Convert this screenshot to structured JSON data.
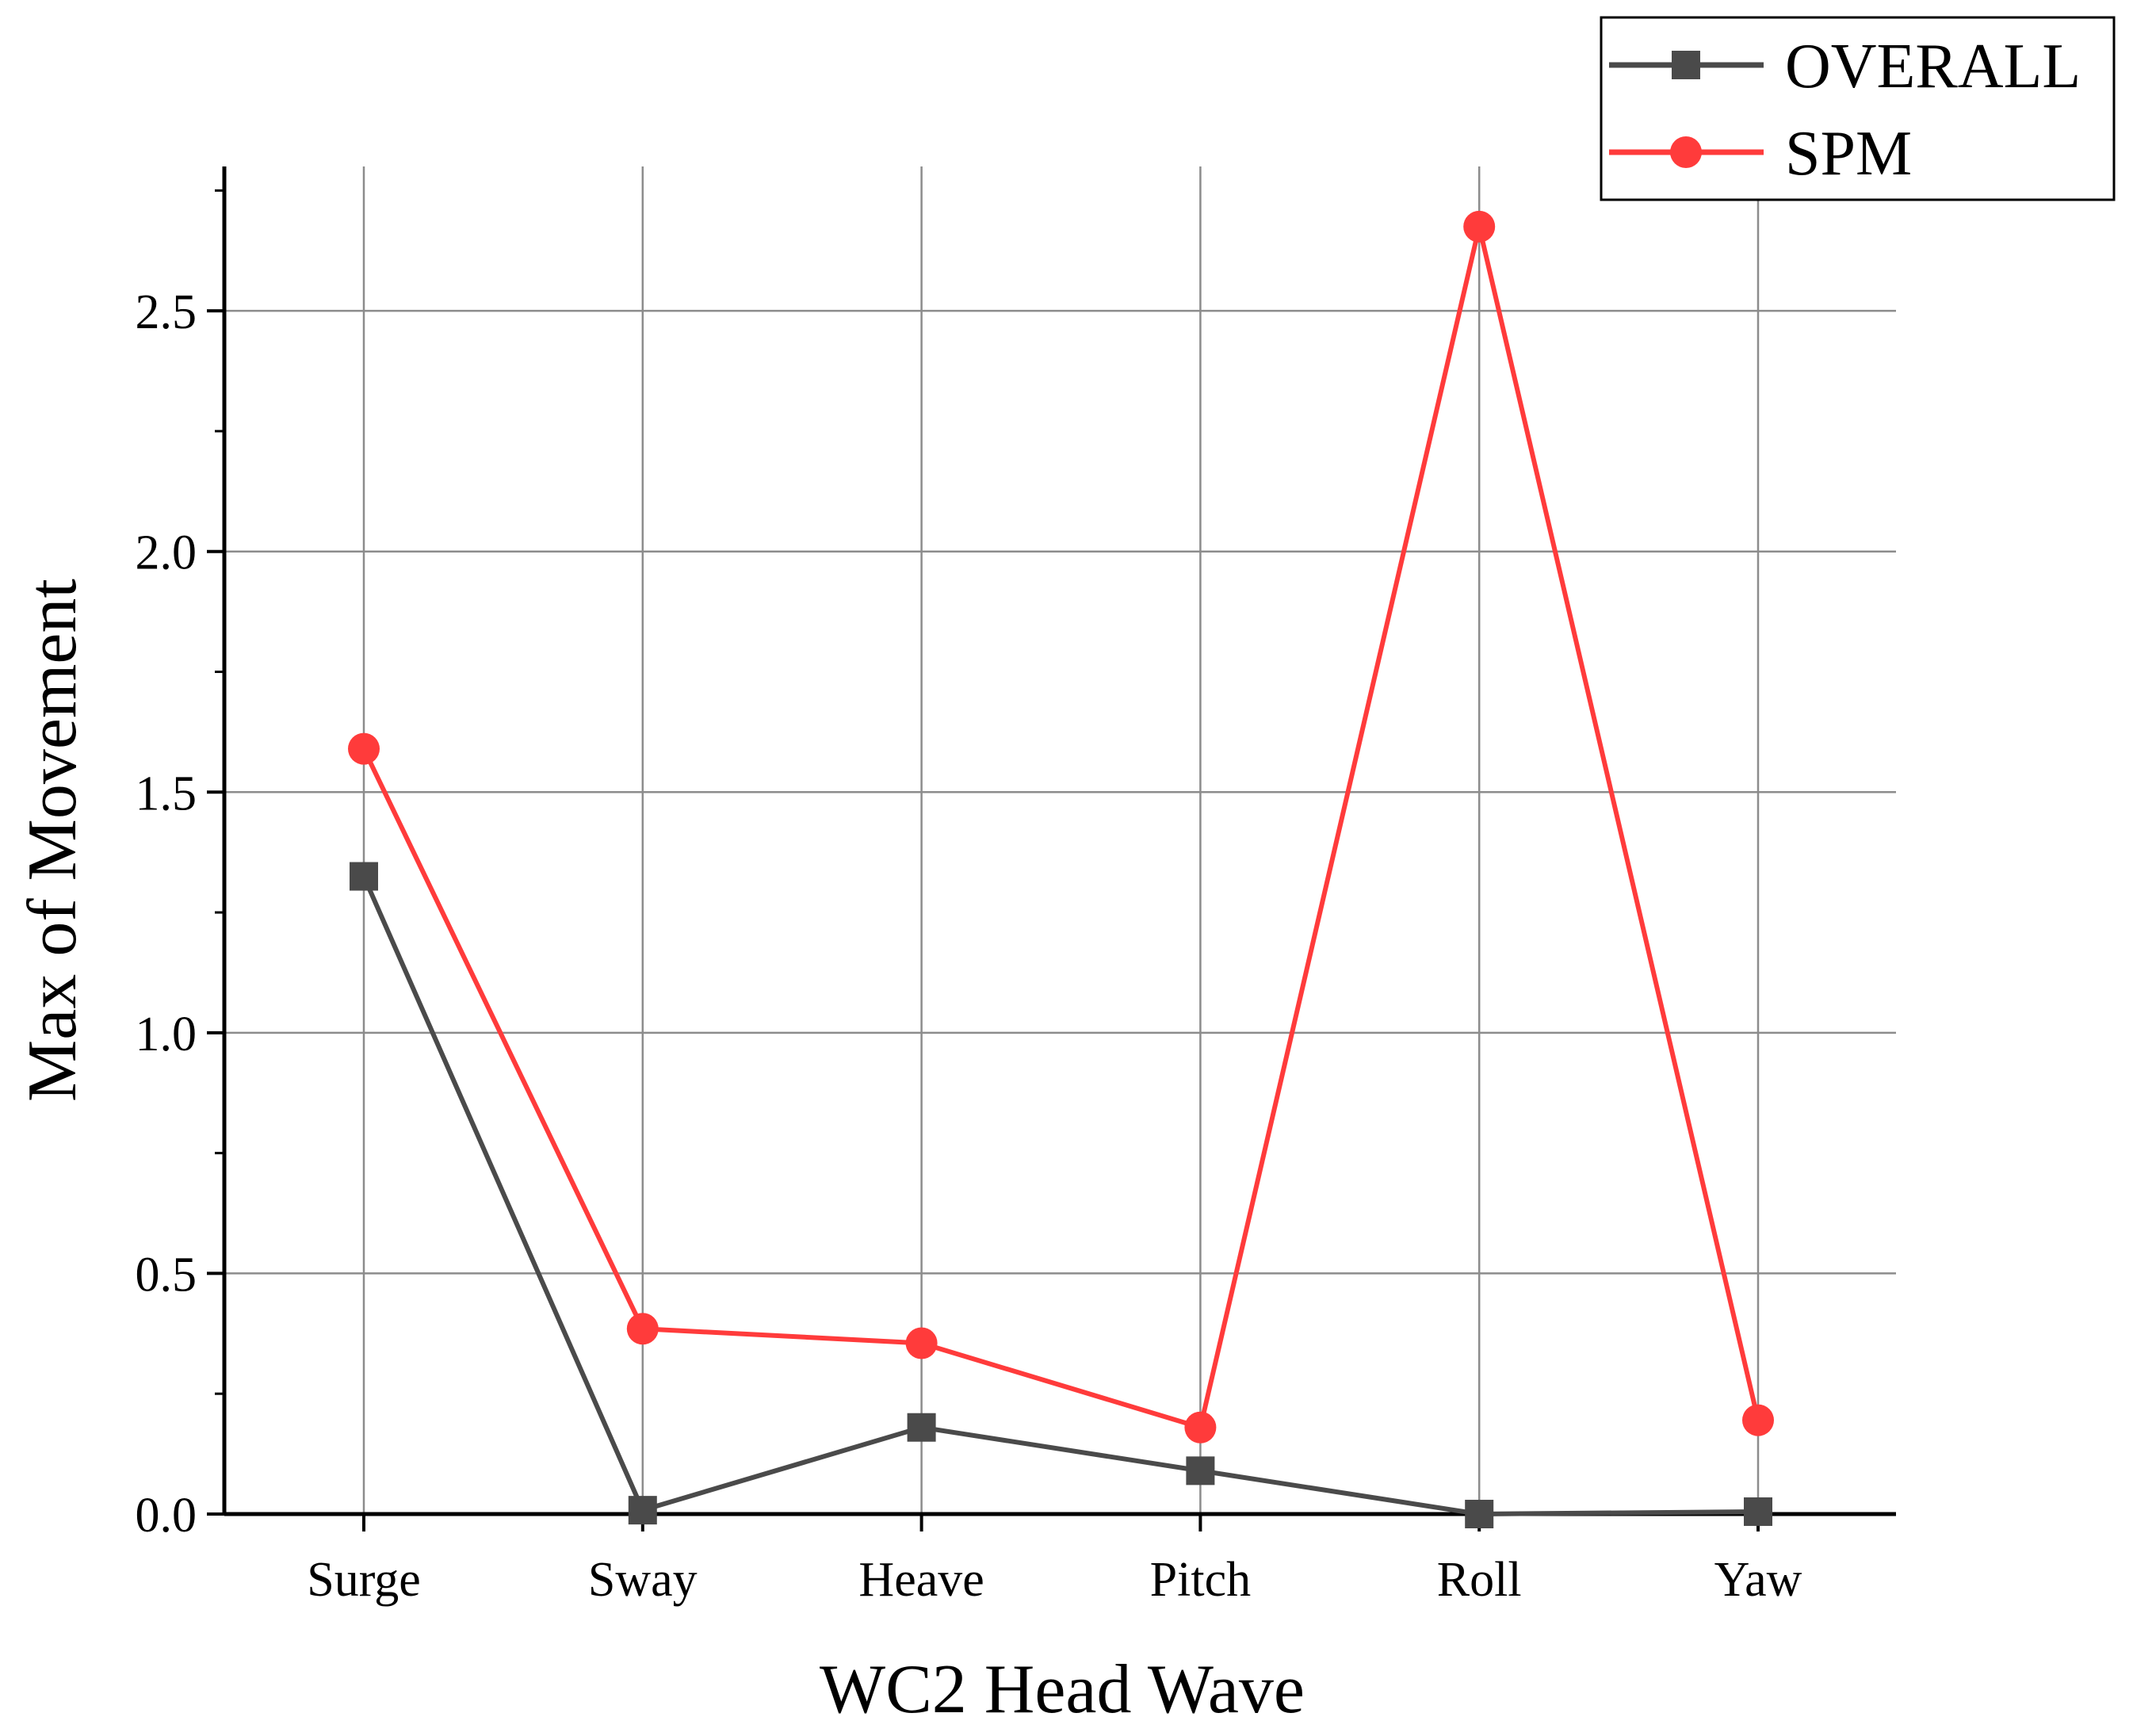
{
  "chart_data": {
    "type": "line",
    "title": "",
    "xlabel": "WC2 Head Wave",
    "ylabel": "Max of Movement",
    "categories": [
      "Surge",
      "Sway",
      "Heave",
      "Pitch",
      "Roll",
      "Yaw"
    ],
    "ylim": [
      0,
      2.8
    ],
    "yticks": [
      "0.0",
      "0.5",
      "1.0",
      "1.5",
      "2.0",
      "2.5"
    ],
    "grid": true,
    "legend_position": "top-right",
    "series": [
      {
        "name": "OVERALL",
        "color": "#4a4a4a",
        "marker": "square",
        "values": [
          1.325,
          0.008,
          0.18,
          0.09,
          0.0,
          0.005
        ]
      },
      {
        "name": "SPM",
        "color": "#ff3b3b",
        "marker": "circle",
        "values": [
          1.59,
          0.385,
          0.355,
          0.18,
          2.675,
          0.195
        ]
      }
    ]
  }
}
